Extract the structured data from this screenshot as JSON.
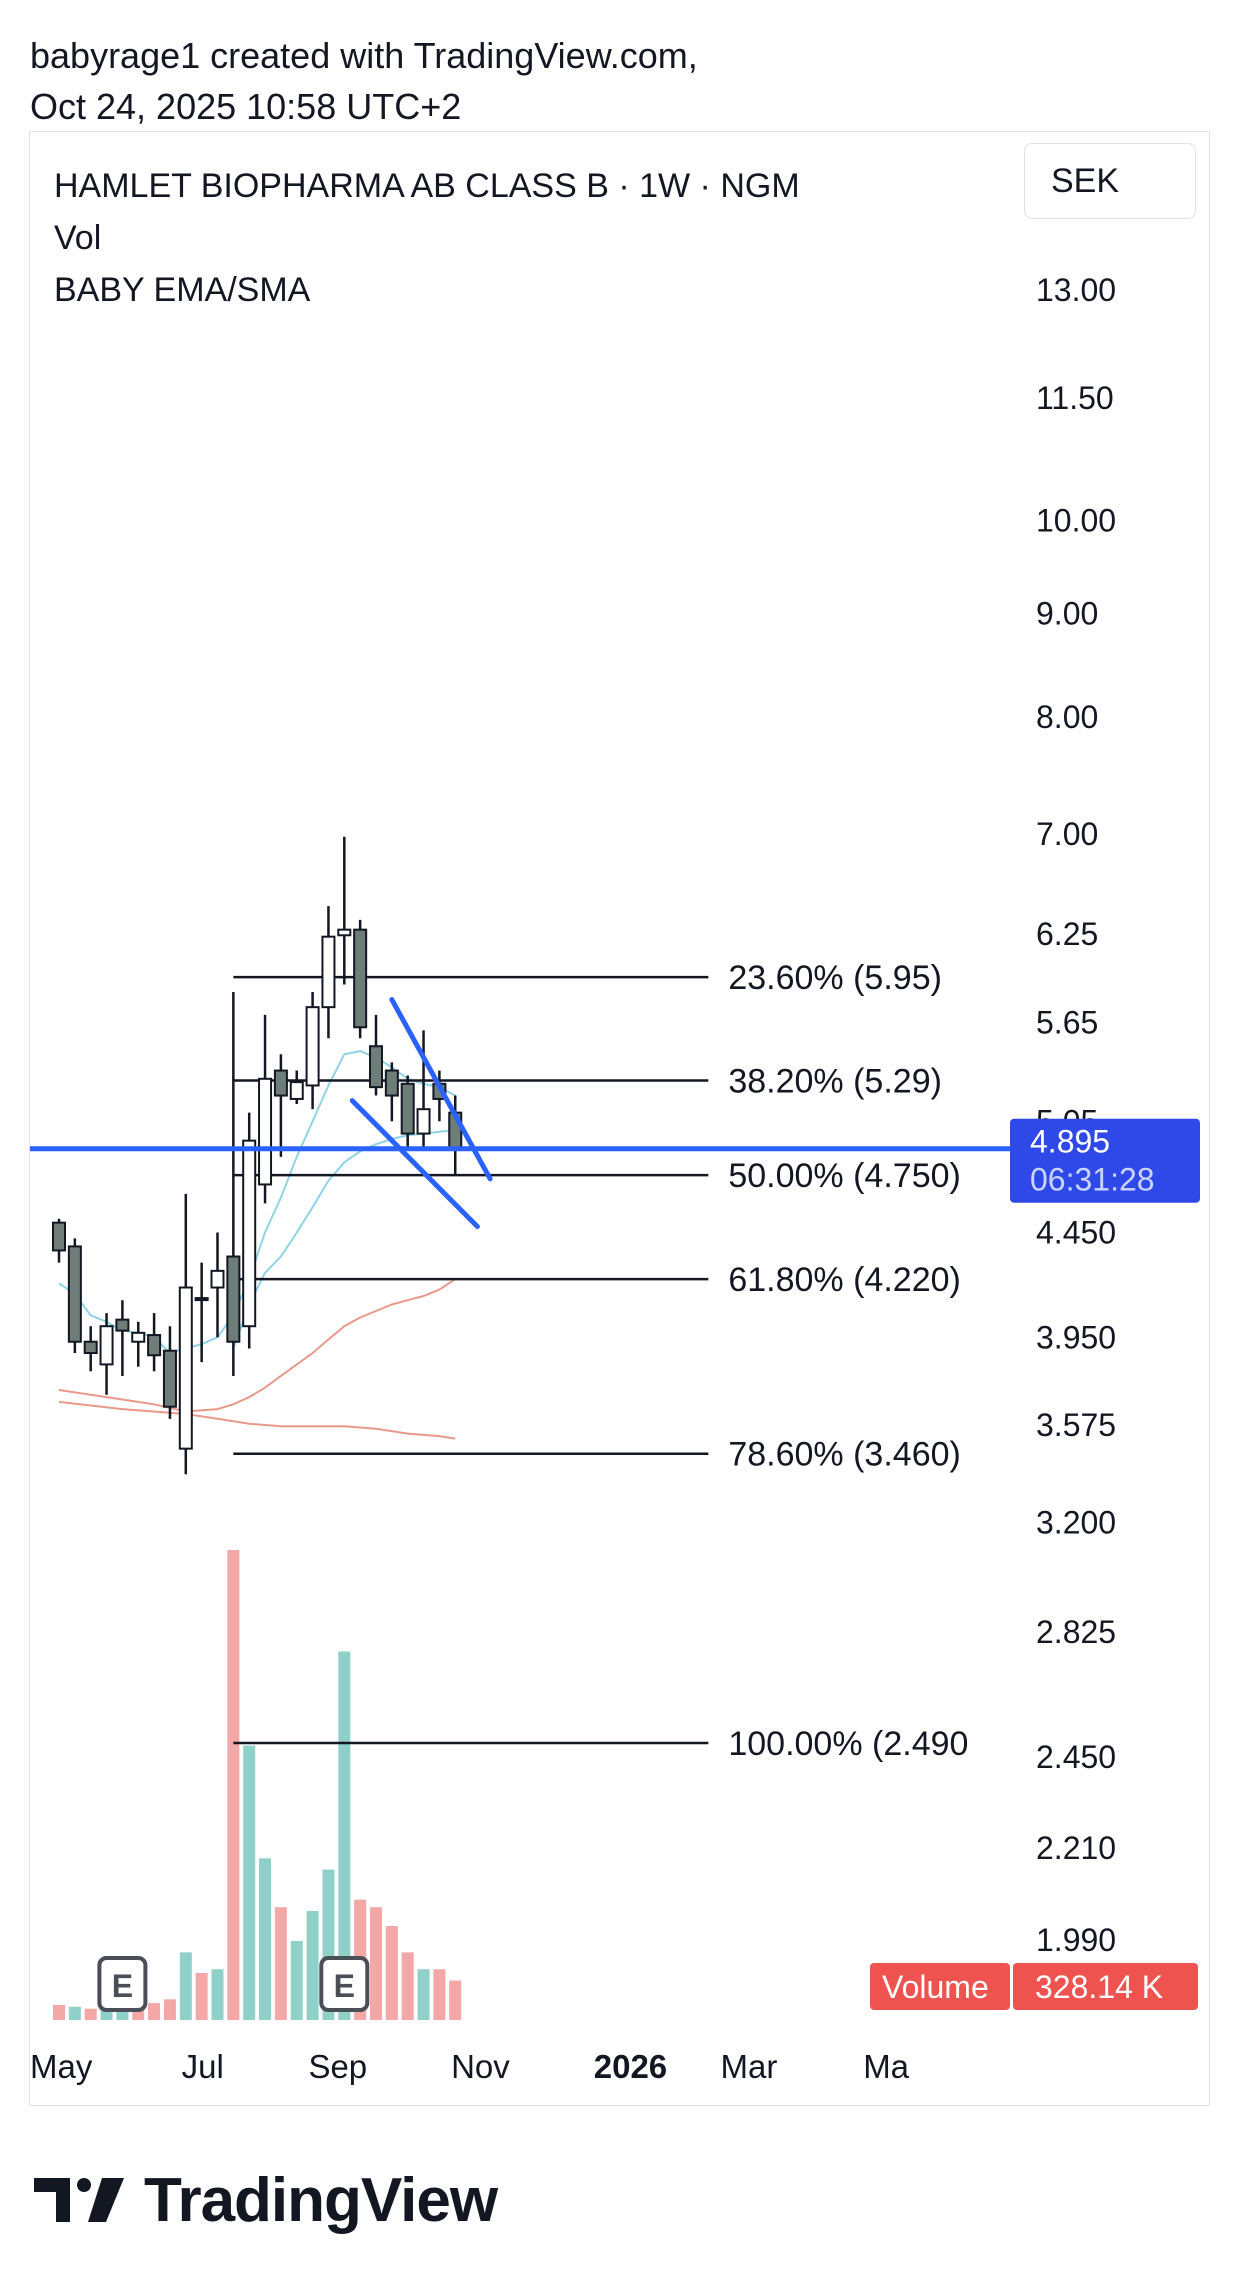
{
  "header": {
    "line1": "babyrage1 created with TradingView.com,",
    "line2": "Oct 24, 2025 10:58 UTC+2"
  },
  "legend": {
    "title": "HAMLET BIOPHARMA AB CLASS B · 1W · NGM",
    "vol": "Vol",
    "indicator": "BABY EMA/SMA"
  },
  "currency": "SEK",
  "footer": {
    "brand": "TradingView"
  },
  "colors": {
    "up_body": "#ffffff",
    "down_body": "#6f7d79",
    "candle_outline": "#131722",
    "vol_up": "#8fd1c9",
    "vol_down": "#f4a7a7",
    "ema_short": "#8fd3e6",
    "ma_long": "#e8998a",
    "channel": "#2962ff",
    "price_line": "#2962ff",
    "price_tag": "#2f49e8",
    "volume_tag": "#ef5350",
    "fib_line": "#131722"
  },
  "chart_data": {
    "type": "candlestick",
    "symbol": "HAMLET BIOPHARMA AB CLASS B",
    "interval": "1W",
    "exchange": "NGM",
    "y_scale": "log",
    "ylim": [
      1.92,
      14.2
    ],
    "y_ticks": [
      "13.00",
      "11.50",
      "10.00",
      "9.00",
      "8.00",
      "7.00",
      "6.25",
      "5.65",
      "5.05",
      "4.450",
      "3.950",
      "3.575",
      "3.200",
      "2.825",
      "2.450",
      "2.210",
      "1.990"
    ],
    "x_ticks": [
      {
        "label": "May",
        "bar": 0
      },
      {
        "label": "Jul",
        "bar": 9
      },
      {
        "label": "Sep",
        "bar": 17
      },
      {
        "label": "Nov",
        "bar": 26
      },
      {
        "label": "2026",
        "bar": 35,
        "bold": true
      },
      {
        "label": "Mar",
        "bar": 43
      },
      {
        "label": "Ma",
        "bar": 52
      }
    ],
    "candles": [
      {
        "o": 4.5,
        "h": 4.52,
        "l": 4.3,
        "c": 4.36
      },
      {
        "o": 4.38,
        "h": 4.42,
        "l": 3.88,
        "c": 3.93
      },
      {
        "o": 3.93,
        "h": 4.0,
        "l": 3.8,
        "c": 3.88
      },
      {
        "o": 3.83,
        "h": 4.06,
        "l": 3.7,
        "c": 4.0
      },
      {
        "o": 4.03,
        "h": 4.12,
        "l": 3.78,
        "c": 3.98
      },
      {
        "o": 3.93,
        "h": 4.02,
        "l": 3.82,
        "c": 3.97
      },
      {
        "o": 3.96,
        "h": 4.06,
        "l": 3.8,
        "c": 3.87
      },
      {
        "o": 3.89,
        "h": 4.0,
        "l": 3.6,
        "c": 3.65
      },
      {
        "o": 3.48,
        "h": 4.65,
        "l": 3.38,
        "c": 4.18
      },
      {
        "o": 4.13,
        "h": 4.3,
        "l": 3.84,
        "c": 4.13
      },
      {
        "o": 4.18,
        "h": 4.45,
        "l": 3.95,
        "c": 4.26
      },
      {
        "o": 4.33,
        "h": 5.85,
        "l": 3.78,
        "c": 3.93
      },
      {
        "o": 4.0,
        "h": 5.1,
        "l": 3.9,
        "c": 4.94
      },
      {
        "o": 4.7,
        "h": 5.7,
        "l": 4.6,
        "c": 5.3
      },
      {
        "o": 5.35,
        "h": 5.45,
        "l": 4.85,
        "c": 5.2
      },
      {
        "o": 5.18,
        "h": 5.35,
        "l": 5.15,
        "c": 5.28
      },
      {
        "o": 5.26,
        "h": 5.85,
        "l": 5.12,
        "c": 5.75
      },
      {
        "o": 5.75,
        "h": 6.45,
        "l": 5.55,
        "c": 6.23
      },
      {
        "o": 6.24,
        "h": 6.98,
        "l": 5.9,
        "c": 6.28
      },
      {
        "o": 6.28,
        "h": 6.35,
        "l": 5.55,
        "c": 5.62
      },
      {
        "o": 5.5,
        "h": 5.7,
        "l": 5.2,
        "c": 5.25
      },
      {
        "o": 5.35,
        "h": 5.4,
        "l": 5.05,
        "c": 5.2
      },
      {
        "o": 5.27,
        "h": 5.32,
        "l": 4.9,
        "c": 4.98
      },
      {
        "o": 4.98,
        "h": 5.6,
        "l": 4.9,
        "c": 5.12
      },
      {
        "o": 5.27,
        "h": 5.35,
        "l": 5.05,
        "c": 5.18
      },
      {
        "o": 5.1,
        "h": 5.2,
        "l": 4.75,
        "c": 4.9
      }
    ],
    "volume": [
      {
        "v": 0.4,
        "dir": "down"
      },
      {
        "v": 0.35,
        "dir": "up"
      },
      {
        "v": 0.3,
        "dir": "down"
      },
      {
        "v": 0.35,
        "dir": "up"
      },
      {
        "v": 0.3,
        "dir": "up"
      },
      {
        "v": 0.4,
        "dir": "down"
      },
      {
        "v": 0.45,
        "dir": "down"
      },
      {
        "v": 0.55,
        "dir": "down"
      },
      {
        "v": 1.8,
        "dir": "up"
      },
      {
        "v": 1.25,
        "dir": "down"
      },
      {
        "v": 1.35,
        "dir": "up"
      },
      {
        "v": 12.5,
        "dir": "down"
      },
      {
        "v": 7.3,
        "dir": "up"
      },
      {
        "v": 4.3,
        "dir": "up"
      },
      {
        "v": 3.0,
        "dir": "down"
      },
      {
        "v": 2.1,
        "dir": "up"
      },
      {
        "v": 2.9,
        "dir": "up"
      },
      {
        "v": 4.0,
        "dir": "up"
      },
      {
        "v": 9.8,
        "dir": "up"
      },
      {
        "v": 3.2,
        "dir": "down"
      },
      {
        "v": 3.0,
        "dir": "down"
      },
      {
        "v": 2.5,
        "dir": "down"
      },
      {
        "v": 1.8,
        "dir": "down"
      },
      {
        "v": 1.35,
        "dir": "up"
      },
      {
        "v": 1.35,
        "dir": "down"
      },
      {
        "v": 1.05,
        "dir": "down"
      }
    ],
    "volume_max": 12.5,
    "earnings_markers": [
      {
        "label": "E",
        "bar": 4
      },
      {
        "label": "E",
        "bar": 18
      }
    ],
    "ema_short": [
      {
        "b": 0,
        "v": 4.2
      },
      {
        "b": 1,
        "v": 4.15
      },
      {
        "b": 2,
        "v": 4.05
      },
      {
        "b": 3,
        "v": 4.02
      },
      {
        "b": 4,
        "v": 3.98
      },
      {
        "b": 5,
        "v": 3.97
      },
      {
        "b": 6,
        "v": 3.95
      },
      {
        "b": 7,
        "v": 3.88
      },
      {
        "b": 8,
        "v": 3.9
      },
      {
        "b": 9,
        "v": 3.92
      },
      {
        "b": 10,
        "v": 3.95
      },
      {
        "b": 11,
        "v": 4.05
      },
      {
        "b": 12,
        "v": 4.22
      },
      {
        "b": 13,
        "v": 4.45
      },
      {
        "b": 14,
        "v": 4.63
      },
      {
        "b": 15,
        "v": 4.85
      },
      {
        "b": 16,
        "v": 5.05
      },
      {
        "b": 17,
        "v": 5.26
      },
      {
        "b": 18,
        "v": 5.45
      },
      {
        "b": 19,
        "v": 5.47
      },
      {
        "b": 20,
        "v": 5.43
      },
      {
        "b": 21,
        "v": 5.37
      },
      {
        "b": 22,
        "v": 5.3
      },
      {
        "b": 23,
        "v": 5.27
      },
      {
        "b": 24,
        "v": 5.25
      },
      {
        "b": 25,
        "v": 5.2
      }
    ],
    "ema_mid": [
      {
        "b": 11,
        "v": 3.9
      },
      {
        "b": 12,
        "v": 4.1
      },
      {
        "b": 13,
        "v": 4.25
      },
      {
        "b": 14,
        "v": 4.33
      },
      {
        "b": 15,
        "v": 4.45
      },
      {
        "b": 16,
        "v": 4.58
      },
      {
        "b": 17,
        "v": 4.72
      },
      {
        "b": 18,
        "v": 4.82
      },
      {
        "b": 19,
        "v": 4.88
      },
      {
        "b": 20,
        "v": 4.92
      },
      {
        "b": 21,
        "v": 4.95
      },
      {
        "b": 22,
        "v": 4.97
      },
      {
        "b": 23,
        "v": 4.98
      },
      {
        "b": 24,
        "v": 4.99
      },
      {
        "b": 25,
        "v": 5.0
      }
    ],
    "ma_mid": [
      {
        "b": 0,
        "v": 3.72
      },
      {
        "b": 2,
        "v": 3.7
      },
      {
        "b": 4,
        "v": 3.68
      },
      {
        "b": 6,
        "v": 3.66
      },
      {
        "b": 8,
        "v": 3.63
      },
      {
        "b": 10,
        "v": 3.64
      },
      {
        "b": 11,
        "v": 3.66
      },
      {
        "b": 12,
        "v": 3.69
      },
      {
        "b": 13,
        "v": 3.73
      },
      {
        "b": 14,
        "v": 3.78
      },
      {
        "b": 15,
        "v": 3.83
      },
      {
        "b": 16,
        "v": 3.88
      },
      {
        "b": 17,
        "v": 3.94
      },
      {
        "b": 18,
        "v": 4.0
      },
      {
        "b": 19,
        "v": 4.04
      },
      {
        "b": 20,
        "v": 4.07
      },
      {
        "b": 21,
        "v": 4.1
      },
      {
        "b": 22,
        "v": 4.12
      },
      {
        "b": 23,
        "v": 4.14
      },
      {
        "b": 24,
        "v": 4.17
      },
      {
        "b": 25,
        "v": 4.22
      }
    ],
    "ma_long": [
      {
        "b": 0,
        "v": 3.67
      },
      {
        "b": 4,
        "v": 3.64
      },
      {
        "b": 8,
        "v": 3.62
      },
      {
        "b": 10,
        "v": 3.6
      },
      {
        "b": 12,
        "v": 3.58
      },
      {
        "b": 14,
        "v": 3.57
      },
      {
        "b": 16,
        "v": 3.57
      },
      {
        "b": 18,
        "v": 3.57
      },
      {
        "b": 20,
        "v": 3.56
      },
      {
        "b": 22,
        "v": 3.54
      },
      {
        "b": 24,
        "v": 3.53
      },
      {
        "b": 25,
        "v": 3.52
      }
    ],
    "channel_lines": [
      {
        "from": {
          "b": 21.0,
          "v": 5.8
        },
        "to": {
          "b": 27.2,
          "v": 4.73
        }
      },
      {
        "from": {
          "b": 18.5,
          "v": 5.17
        },
        "to": {
          "b": 26.4,
          "v": 4.48
        }
      }
    ],
    "fib_levels": [
      {
        "label": "23.60% (5.95)",
        "value": 5.95
      },
      {
        "label": "38.20% (5.29)",
        "value": 5.29
      },
      {
        "label": "50.00% (4.750)",
        "value": 4.75
      },
      {
        "label": "61.80% (4.220)",
        "value": 4.22
      },
      {
        "label": "78.60% (3.460)",
        "value": 3.46
      },
      {
        "label": "100.00% (2.490",
        "value": 2.49
      }
    ],
    "fib_start_bar": 11,
    "fib_end_bar": 26.5,
    "last_price": {
      "value": 4.895,
      "label": "4.895",
      "countdown": "06:31:28"
    },
    "volume_label": {
      "name": "Volume",
      "value": "328.14 K"
    }
  }
}
